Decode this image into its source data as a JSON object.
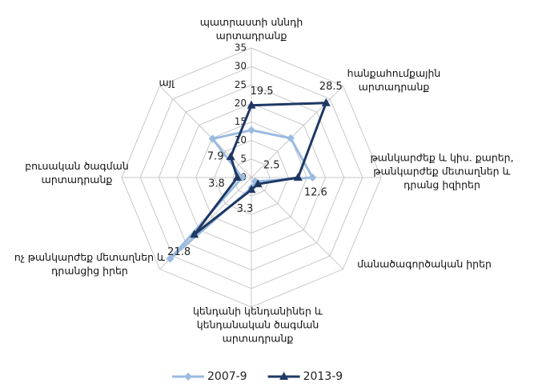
{
  "chart_data": {
    "type": "radar",
    "categories": [
      "պատրաստի սննդի արտադրանք",
      "հանքահումքային արտադրանք",
      "թանկարժեք և կիս. քարեր, թանկարժեք մետաղներ և դրանց իզիրեր",
      "մանածագործական իրեր",
      "կենդանի կենդանիներ և կենդանական ծագման արտադրանք",
      "ոչ թանկարժեք մետաղներ և դրանցից իրեր",
      "բուսական ծագման արտադրանք",
      "այլ"
    ],
    "series": [
      {
        "name": "2007-9",
        "color": "#9bbbe0",
        "marker": "diamond",
        "values": [
          12.8,
          15,
          16.5,
          1.5,
          2.8,
          31,
          2.5,
          14.8
        ]
      },
      {
        "name": "2013-9",
        "color": "#1f3864",
        "marker": "triangle",
        "values": [
          19.5,
          28.5,
          12.6,
          2.5,
          3.3,
          21.8,
          3.8,
          7.9
        ],
        "show_labels": true
      }
    ],
    "ylim": [
      0,
      35
    ],
    "yticks": [
      0,
      5,
      10,
      15,
      20,
      25,
      30,
      35
    ],
    "grid": true,
    "legend": "bottom"
  }
}
